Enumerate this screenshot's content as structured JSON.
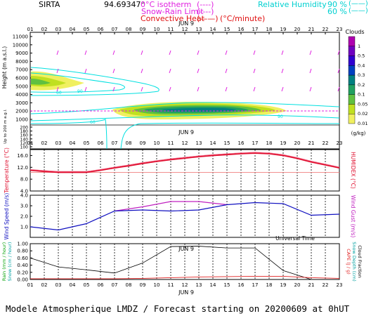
{
  "header": {
    "station": "SIRTA",
    "coords": "94.69347°",
    "legend_isotherm": "0°C isotherm",
    "legend_isotherm_symbol": "(----)",
    "legend_snow_rain": "Snow-Rain Limit",
    "legend_snow_rain_symbol": "(----)",
    "legend_convective": "Convective Heat",
    "legend_convective_symbol": "(——)",
    "legend_convective_unit": "(°C/minute)",
    "rh_label": "Relative Humidity",
    "rh_90": "90 %",
    "rh_60": "60 %",
    "rh_90_symbol": "(——)",
    "rh_60_symbol": "(——)"
  },
  "time_axis": {
    "hours": [
      "01",
      "02",
      "03",
      "04",
      "05",
      "06",
      "07",
      "08",
      "09",
      "10",
      "11",
      "12",
      "13",
      "14",
      "15",
      "16",
      "17",
      "18",
      "19",
      "20",
      "21",
      "22",
      "23"
    ],
    "bottom_hours": [
      "01",
      "02",
      "03",
      "04",
      "05",
      "06",
      "07",
      "08",
      "09",
      "10",
      "11",
      "12",
      "13",
      "14",
      "15",
      "16",
      "17",
      "18",
      "19",
      "20",
      "21",
      "22",
      "23"
    ],
    "date_label": "JUN  9",
    "universal_time": "Universal Time"
  },
  "footer": {
    "model_text": "Modele Atmospherique LMDZ / Forecast starting on 20200609 at 0hUT"
  },
  "colors": {
    "temperature": "#e01030",
    "gust": "#c020c0",
    "wind": "#1010c0",
    "rain": "#00a000",
    "snow": "#00a0a0",
    "cape": "#e02020",
    "humidity_cyan": "#00e0e0",
    "magenta": "#e020e0"
  },
  "chart_data": [
    {
      "type": "heatmap",
      "panel": "clouds",
      "ylabel": "Height (m a.s.l.)",
      "ylabel_low": "Up to 200 m a.g.l.",
      "y_ticks": [
        "11000",
        "10000",
        "9000",
        "8000",
        "7000",
        "6000",
        "5000",
        "4000",
        "3000",
        "2000",
        "1000"
      ],
      "y_ticks_low": [
        "200",
        "180",
        "160",
        "140",
        "120",
        "100"
      ],
      "colorbar_title": "Clouds",
      "colorbar_unit": "(g/kg)",
      "colorbar_labels": [
        "1",
        "0.5",
        "0.4",
        "0.3",
        "0.2",
        "0.1",
        "0.05",
        "0.02",
        "0.01"
      ],
      "colorbar_colors": [
        "#b000b0",
        "#7000c0",
        "#3000d0",
        "#0040c0",
        "#008080",
        "#20a060",
        "#60c040",
        "#c0e020",
        "#f0f060"
      ],
      "contour_labels": [
        "60",
        "90",
        "60",
        "90"
      ]
    },
    {
      "type": "line",
      "panel": "temperature",
      "ylabel": "Temperature (°C)",
      "ylabel_right": "HUMIDEX (°C)",
      "y_ticks": [
        "16.0",
        "12.0",
        "8.0",
        "4.0"
      ],
      "ylim": [
        4,
        18
      ],
      "series": [
        {
          "name": "Temperature",
          "x": [
            1,
            2,
            3,
            4,
            5,
            6,
            7,
            8,
            9,
            10,
            11,
            12,
            13,
            14,
            15,
            16,
            17,
            18,
            19,
            20,
            21,
            22,
            23
          ],
          "values": [
            11.0,
            10.6,
            10.3,
            10.3,
            10.3,
            11.0,
            11.8,
            12.5,
            13.3,
            14.0,
            14.6,
            15.1,
            15.6,
            16.0,
            16.3,
            16.6,
            16.8,
            16.6,
            16.0,
            15.0,
            13.8,
            12.8,
            11.8
          ]
        }
      ]
    },
    {
      "type": "line",
      "panel": "wind",
      "ylabel": "Wind Speed (m/s)",
      "ylabel_right": "Wind Gust (m/s)",
      "y_ticks": [
        "4.0",
        "3.0",
        "2.0",
        "1.0"
      ],
      "ylim": [
        0.0,
        4.0
      ],
      "series": [
        {
          "name": "Wind Speed",
          "x": [
            1,
            3,
            5,
            7,
            9,
            11,
            13,
            15,
            17,
            19,
            21,
            23
          ],
          "values": [
            1.0,
            0.7,
            1.3,
            2.5,
            2.6,
            2.5,
            2.6,
            3.1,
            3.3,
            3.2,
            2.1,
            2.2
          ]
        },
        {
          "name": "Wind Gust",
          "x": [
            7,
            9,
            11,
            13,
            15
          ],
          "values": [
            2.5,
            2.9,
            3.4,
            3.4,
            3.1
          ]
        }
      ]
    },
    {
      "type": "line",
      "panel": "precipitation",
      "ylabel": "Rain (mm / hour)",
      "ylabel2": "Snow (cm / hour)",
      "ylabel_right": "CAPE (J / g)",
      "ylabel_right2": "Snow Depth (cm)",
      "ylabel_right3": "Cloud Fraction",
      "y_ticks": [
        "1.00",
        "0.80",
        "0.60",
        "0.40",
        "0.20",
        "0.00"
      ],
      "ylim": [
        0.0,
        1.0
      ],
      "series": [
        {
          "name": "Cloud Fraction",
          "x": [
            1,
            3,
            5,
            7,
            9,
            11,
            13,
            15,
            17,
            19,
            21,
            23
          ],
          "values": [
            0.6,
            0.35,
            0.27,
            0.18,
            0.46,
            0.92,
            0.93,
            0.88,
            0.88,
            0.25,
            0.0,
            0.0
          ]
        },
        {
          "name": "CAPE",
          "x": [
            1,
            3,
            5,
            7,
            9,
            11,
            13,
            15,
            17,
            19,
            21,
            23
          ],
          "values": [
            0.02,
            0.02,
            0.02,
            0.02,
            0.03,
            0.05,
            0.07,
            0.08,
            0.09,
            0.09,
            0.05,
            0.03
          ]
        }
      ]
    }
  ]
}
